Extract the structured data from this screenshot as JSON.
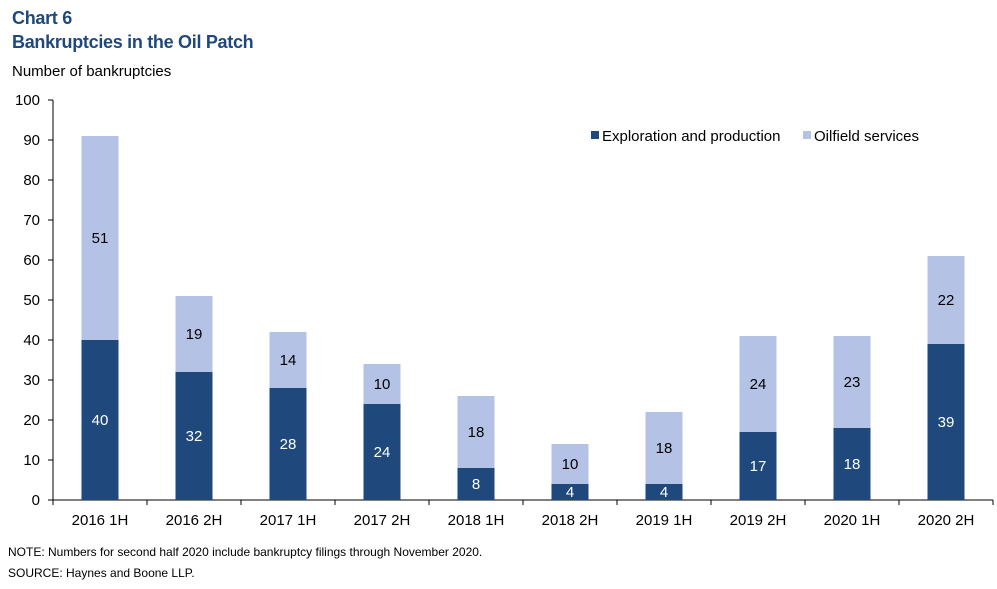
{
  "header": {
    "chart_number": "Chart 6",
    "title": "Bankruptcies in the Oil Patch",
    "units_label": "Number of bankruptcies"
  },
  "footer": {
    "note": "NOTE: Numbers for second half 2020 include bankruptcy filings through November 2020.",
    "source": "SOURCE: Haynes and Boone LLP."
  },
  "colors": {
    "exploration": "#1f497d",
    "oilfield": "#b4c2e6",
    "title": "#1f497d"
  },
  "chart_data": {
    "type": "bar",
    "stacked": true,
    "title": "Bankruptcies in the Oil Patch",
    "ylabel": "Number of bankruptcies",
    "xlabel": "",
    "ylim": [
      0,
      100
    ],
    "yticks": [
      0,
      10,
      20,
      30,
      40,
      50,
      60,
      70,
      80,
      90,
      100
    ],
    "grid": false,
    "legend_position": "top-right",
    "categories": [
      "2016 1H",
      "2016 2H",
      "2017 1H",
      "2017 2H",
      "2018 1H",
      "2018 2H",
      "2019 1H",
      "2019 2H",
      "2020 1H",
      "2020 2H"
    ],
    "series": [
      {
        "name": "Exploration and production",
        "values": [
          40,
          32,
          28,
          24,
          8,
          4,
          4,
          17,
          18,
          39
        ]
      },
      {
        "name": "Oilfield services",
        "values": [
          51,
          19,
          14,
          10,
          18,
          10,
          18,
          24,
          23,
          22
        ]
      }
    ]
  }
}
